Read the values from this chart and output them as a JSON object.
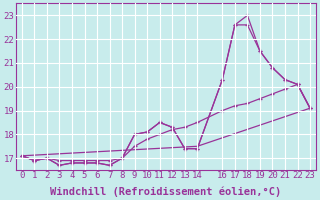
{
  "xlabel": "Windchill (Refroidissement éolien,°C)",
  "ylabel": "",
  "xlim": [
    -0.5,
    23.5
  ],
  "ylim": [
    16.5,
    23.5
  ],
  "xticks": [
    0,
    1,
    2,
    3,
    4,
    5,
    6,
    7,
    8,
    9,
    10,
    11,
    12,
    13,
    14,
    16,
    17,
    18,
    19,
    20,
    21,
    22,
    23
  ],
  "yticks": [
    17,
    18,
    19,
    20,
    21,
    22,
    23
  ],
  "background_color": "#c8ecec",
  "grid_color": "#b0d8d8",
  "line_color": "#993399",
  "series": [
    {
      "x": [
        0,
        1,
        2,
        3,
        4,
        5,
        6,
        7,
        8,
        9,
        10,
        11,
        12,
        13,
        14,
        16,
        17,
        18,
        19,
        20,
        21,
        22,
        23
      ],
      "y": [
        17.1,
        16.9,
        17.0,
        16.7,
        16.8,
        16.8,
        16.8,
        16.7,
        17.0,
        18.0,
        18.1,
        18.5,
        18.3,
        17.4,
        17.4,
        20.3,
        22.6,
        23.0,
        21.5,
        20.8,
        20.3,
        20.1,
        19.1
      ]
    },
    {
      "x": [
        0,
        1,
        2,
        3,
        4,
        5,
        6,
        7,
        8,
        9,
        10,
        11,
        12,
        13,
        14,
        16,
        17,
        18,
        19,
        20,
        21,
        22,
        23
      ],
      "y": [
        17.1,
        16.9,
        17.0,
        16.7,
        16.8,
        16.8,
        16.8,
        16.7,
        17.0,
        18.0,
        18.1,
        18.5,
        18.3,
        17.4,
        17.4,
        20.3,
        22.6,
        22.6,
        21.5,
        20.8,
        20.3,
        20.1,
        19.1
      ]
    },
    {
      "x": [
        0,
        1,
        2,
        3,
        4,
        5,
        6,
        7,
        8,
        9,
        10,
        11,
        12,
        13,
        14,
        16,
        17,
        18,
        19,
        20,
        21,
        22,
        23
      ],
      "y": [
        17.1,
        16.9,
        17.0,
        16.9,
        16.9,
        16.9,
        16.9,
        16.9,
        17.0,
        17.5,
        17.8,
        18.0,
        18.2,
        18.3,
        18.5,
        19.0,
        19.2,
        19.3,
        19.5,
        19.7,
        19.9,
        20.1,
        19.1
      ]
    },
    {
      "x": [
        0,
        14,
        23
      ],
      "y": [
        17.1,
        17.5,
        19.1
      ]
    }
  ],
  "font_family": "monospace",
  "tick_fontsize": 6.5,
  "label_fontsize": 7.5
}
